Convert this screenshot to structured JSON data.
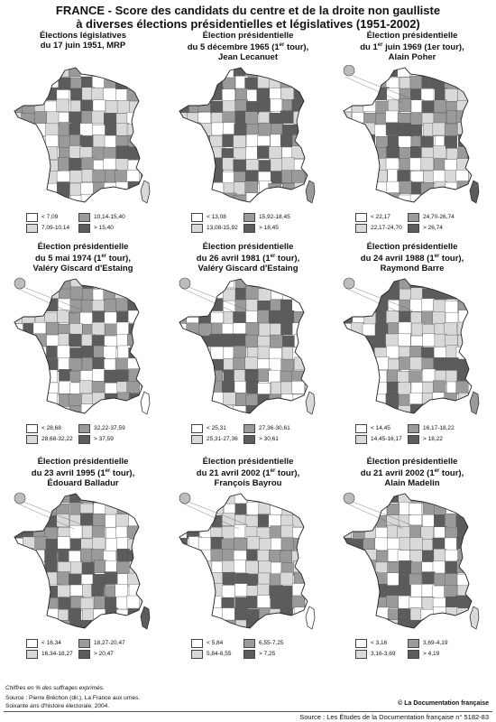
{
  "title": {
    "line1": "FRANCE -  Score des candidats du centre et de la droite non gaulliste",
    "line2": "à diverses élections présidentielles et législatives (1951-2002)"
  },
  "colors": {
    "class0": "#ffffff",
    "class1": "#d9d9d9",
    "class2": "#9a9a9a",
    "class3": "#5c5c5c"
  },
  "panels": [
    {
      "title_lines": [
        "Élections législatives",
        "du 17 juin 1951, MRP"
      ],
      "legend": [
        "< 7,09",
        "7,09-10,14",
        "10,14-15,40",
        "> 15,40"
      ]
    },
    {
      "title_lines": [
        "Élection présidentielle",
        "du 5 décembre 1965 (1er tour),",
        "Jean Lecanuet"
      ],
      "legend": [
        "< 13,08",
        "13,08-15,92",
        "15,92-18,45",
        "> 18,45"
      ]
    },
    {
      "title_lines": [
        "Élection présidentielle",
        "du 1er juin 1969 (1er tour),",
        "Alain Poher"
      ],
      "legend": [
        "< 22,17",
        "22,17-24,70",
        "24,70-26,74",
        "> 26,74"
      ]
    },
    {
      "title_lines": [
        "Élection présidentielle",
        "du 5 mai 1974 (1er tour),",
        "Valéry Giscard d'Estaing"
      ],
      "legend": [
        "< 28,68",
        "28,68-32,22",
        "32,22-37,59",
        "> 37,59"
      ]
    },
    {
      "title_lines": [
        "Élection présidentielle",
        "du 26 avril 1981 (1er tour),",
        "Valéry Giscard d'Estaing"
      ],
      "legend": [
        "< 25,31",
        "25,31-27,36",
        "27,36-30,61",
        "> 30,61"
      ]
    },
    {
      "title_lines": [
        "Élection présidentielle",
        "du 24 avril 1988 (1er tour),",
        "Raymond Barre"
      ],
      "legend": [
        "< 14,45",
        "14,45-16,17",
        "16,17-18,22",
        "> 18,22"
      ]
    },
    {
      "title_lines": [
        "Élection présidentielle",
        "du 23 avril 1995 (1er tour),",
        "Édouard Balladur"
      ],
      "legend": [
        "< 16,34",
        "16,34-18,27",
        "18,27-20,47",
        "> 20,47"
      ]
    },
    {
      "title_lines": [
        "Élection présidentielle",
        "du 21 avril 2002 (1er tour),",
        "François Bayrou"
      ],
      "legend": [
        "< 5,84",
        "5,84-6,55",
        "6,55-7,25",
        "> 7,25"
      ]
    },
    {
      "title_lines": [
        "Élection présidentielle",
        "du 21 avril 2002 (1er tour),",
        "Alain Madelin"
      ],
      "legend": [
        "< 3,16",
        "3,16-3,69",
        "3,69-4,19",
        "> 4,19"
      ]
    }
  ],
  "footnote": "Chiffres en % des suffrages exprimés.",
  "source": {
    "line1": "Source : Pierre Bréchon (dir.), La France aux urnes.",
    "line2": "Soixante ans d'histoire électorale, 2004."
  },
  "copyright": "© La Documentation française",
  "footer": "Source : Les Études de la Documentation française n° 5182-83"
}
